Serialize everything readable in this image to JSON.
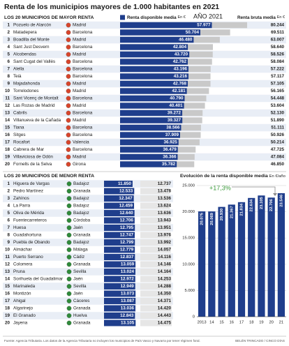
{
  "title": "Renta de los municipios mayores de 1.000 habitantes en 2021",
  "source": "Fuente: Agencia Tributaria. Los datos de la Agencia Tributaria no incluyen los municipios de País Vasco y Navarra por tener régimen foral.",
  "credit": "BELÉN TRINCADO / CINCO DÍAS",
  "chart_data": [
    {
      "type": "bar",
      "subtitle": "LOS 20 MUNICIPIOS DE MAYOR RENTA",
      "annotation": "AÑO 2021",
      "ranks": [
        1,
        2,
        3,
        4,
        5,
        6,
        7,
        8,
        9,
        10,
        11,
        12,
        13,
        14,
        15,
        16,
        17,
        18,
        19,
        20
      ],
      "categories": [
        "Pozuelo de Alarcón",
        "Matadepera",
        "Boadilla del Monte",
        "Sant Just Desvern",
        "Alcobendas",
        "Sant Cugat del Vallès",
        "Alella",
        "Teià",
        "Majadahonda",
        "Torrelodones",
        "Sant Vicenç de Montalt",
        "Las Rozas de Madrid",
        "Cabrils",
        "Villanueva de la Cañada",
        "Tiana",
        "Sitges",
        "Rocafort",
        "Cabrera de Mar",
        "Villaviciosa de Odón",
        "Fornells de la Selva"
      ],
      "provinces": [
        "Madrid",
        "Barcelona",
        "Madrid",
        "Barcelona",
        "Madrid",
        "Barcelona",
        "Barcelona",
        "Barcelona",
        "Madrid",
        "Madrid",
        "Barcelona",
        "Madrid",
        "Barcelona",
        "Madrid",
        "Barcelona",
        "Barcelona",
        "Valencia",
        "Barcelona",
        "Madrid",
        "Girona"
      ],
      "series": [
        {
          "name": "Renta disponible media",
          "unit": "En €",
          "color": "#1f3e8c",
          "values": [
            57977,
            50704,
            46480,
            42804,
            43720,
            42762,
            43196,
            43216,
            42768,
            42181,
            40790,
            40401,
            39272,
            39327,
            38566,
            37909,
            36925,
            36479,
            36366,
            35782
          ],
          "value_labels": [
            "57.977",
            "50.704",
            "46.480",
            "42.804",
            "43.720",
            "42.762",
            "43.196",
            "43.216",
            "42.768",
            "42.181",
            "40.790",
            "40.401",
            "39.272",
            "39.327",
            "38.566",
            "37.909",
            "36.925",
            "36.479",
            "36.366",
            "35.782"
          ]
        },
        {
          "name": "Renta bruta media",
          "unit": "En €",
          "color": "#c9c9c9",
          "values": [
            80244,
            69511,
            63007,
            58640,
            58526,
            58084,
            57222,
            57117,
            57105,
            56165,
            54448,
            53604,
            52130,
            51890,
            51111,
            50926,
            50214,
            47725,
            47084,
            46850
          ],
          "value_labels": [
            "80.244",
            "69.511",
            "63.007",
            "58.640",
            "58.526",
            "58.084",
            "57.222",
            "57.117",
            "57.105",
            "56.165",
            "54.448",
            "53.604",
            "52.130",
            "51.890",
            "51.111",
            "50.926",
            "50.214",
            "47.725",
            "47.084",
            "46.850"
          ]
        }
      ]
    },
    {
      "type": "bar",
      "subtitle": "LOS 20 MUNICIPIOS DE MENOR RENTA",
      "ranks": [
        1,
        2,
        3,
        4,
        5,
        6,
        7,
        8,
        9,
        10,
        11,
        12,
        13,
        14,
        15,
        16,
        17,
        18,
        19,
        20
      ],
      "categories": [
        "Higuera de Vargas",
        "Pedro Martínez",
        "Zahínos",
        "La Parra",
        "Oliva de Mérida",
        "Fuentecarreteros",
        "Huesa",
        "Guadahortuna",
        "Puebla de Obando",
        "Almáchar",
        "Puerto Serrano",
        "Colomera",
        "Pruna",
        "Sorihuela del Guadalimar",
        "Marinaleda",
        "Montizón",
        "Ahigal",
        "Algarinejo",
        "El Granado",
        "Jayena"
      ],
      "provinces": [
        "Badajoz",
        "Granada",
        "Badajoz",
        "Badajoz",
        "Badajoz",
        "Córdoba",
        "Jaén",
        "Granada",
        "Badajoz",
        "Málaga",
        "Cádiz",
        "Granada",
        "Sevilla",
        "Jaén",
        "Sevilla",
        "Jaén",
        "Cáceres",
        "Granada",
        "Huelva",
        "Granada"
      ],
      "series": [
        {
          "color": "#1f3e8c",
          "values": [
            11850,
            12533,
            12347,
            12459,
            12640,
            12706,
            12795,
            12747,
            12799,
            12779,
            12837,
            13059,
            13024,
            12972,
            12949,
            13073,
            13087,
            13036,
            12843,
            13105
          ],
          "value_labels": [
            "11.850",
            "12.533",
            "12.347",
            "12.459",
            "12.640",
            "12.706",
            "12.795",
            "12.747",
            "12.799",
            "12.779",
            "12.837",
            "13.059",
            "13.024",
            "12.972",
            "12.949",
            "13.073",
            "13.087",
            "13.036",
            "12.843",
            "13.105"
          ]
        },
        {
          "color": "#e6e6e6",
          "values": [
            12737,
            13478,
            13536,
            13624,
            13636,
            13943,
            13951,
            13976,
            13992,
            14057,
            14116,
            14146,
            14164,
            14253,
            14288,
            14350,
            14371,
            14420,
            14443,
            14475
          ],
          "value_labels": [
            "12.737",
            "13.478",
            "13.536",
            "13.624",
            "13.636",
            "13.943",
            "13.951",
            "13.976",
            "13.992",
            "14.057",
            "14.116",
            "14.146",
            "14.164",
            "14.253",
            "14.288",
            "14.350",
            "14.371",
            "14.420",
            "14.443",
            "14.475"
          ]
        }
      ]
    },
    {
      "type": "column",
      "title": "Evolución de la renta disponible media",
      "unit": "En €/año",
      "annotation": "+17,3%",
      "categories": [
        "2013",
        "14",
        "15",
        "16",
        "17",
        "18",
        "19",
        "20",
        "21"
      ],
      "values": [
        20075,
        20069,
        20930,
        21367,
        21834,
        22634,
        23105,
        22706,
        23546
      ],
      "value_labels": [
        "20.075",
        "20.069",
        "20.930",
        "21.367",
        "21.834",
        "22.634",
        "23.105",
        "22.706",
        "23.546"
      ],
      "color": "#1f3e8c",
      "ylim": [
        0,
        25000
      ],
      "yticks": [
        0,
        {
          "value": 5000,
          "label": "5.000"
        },
        {
          "value": 10000,
          "label": "10.000"
        },
        {
          "value": 15000,
          "label": "15.000"
        },
        {
          "value": 20000,
          "label": "20.000"
        },
        {
          "value": 25000,
          "label": "25.000"
        }
      ],
      "grid": true
    }
  ]
}
